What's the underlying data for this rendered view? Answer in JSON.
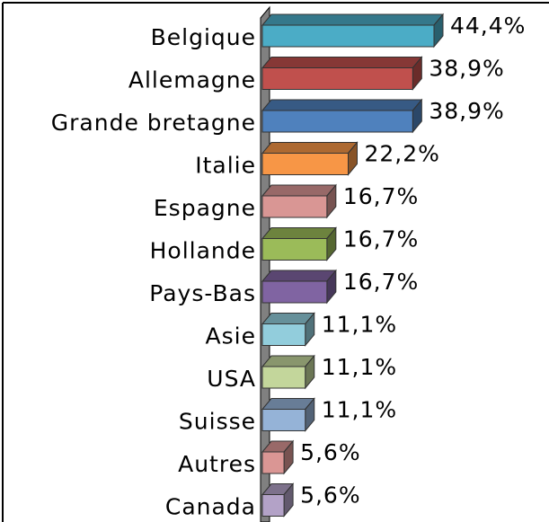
{
  "chart_data": {
    "type": "bar",
    "categories": [
      "Belgique",
      "Allemagne",
      "Grande bretagne",
      "Italie",
      "Espagne",
      "Hollande",
      "Pays-Bas",
      "Asie",
      "USA",
      "Suisse",
      "Autres",
      "Canada"
    ],
    "values": [
      44.4,
      38.9,
      38.9,
      22.2,
      16.7,
      16.7,
      16.7,
      11.1,
      11.1,
      11.1,
      5.6,
      5.6
    ],
    "value_labels": [
      "44,4%",
      "38,9%",
      "38,9%",
      "22,2%",
      "16,7%",
      "16,7%",
      "16,7%",
      "11,1%",
      "11,1%",
      "11,1%",
      "5,6%",
      "5,6%"
    ],
    "colors": [
      "#4bacc6",
      "#c0504d",
      "#4f81bd",
      "#f79646",
      "#d99694",
      "#9bbb59",
      "#8064a2",
      "#92cddc",
      "#c3d69b",
      "#95b3d7",
      "#da9694",
      "#b3a2c7"
    ]
  }
}
